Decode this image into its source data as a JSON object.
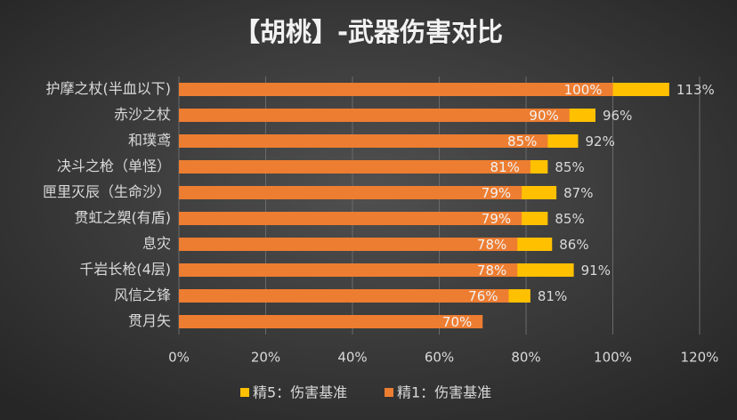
{
  "chart_data": {
    "type": "overlap-bar-horizontal",
    "title": "【胡桃】-武器伤害对比",
    "categories": [
      "护摩之杖(半血以下)",
      "赤沙之杖",
      "和璞鸢",
      "决斗之枪（单怪）",
      "匣里灭辰（生命沙）",
      "贯虹之槊(有盾)",
      "息灾",
      "千岩长枪(4层)",
      "风信之锋",
      "贯月矢"
    ],
    "series": [
      {
        "name": "精5：伤害基准",
        "color": "#FFC000",
        "values": [
          113,
          96,
          92,
          85,
          87,
          85,
          86,
          91,
          81,
          null
        ],
        "value_labels": [
          "113%",
          "96%",
          "92%",
          "85%",
          "87%",
          "85%",
          "86%",
          "91%",
          "81%",
          null
        ]
      },
      {
        "name": "精1：伤害基准",
        "color": "#ED7D31",
        "values": [
          100,
          90,
          85,
          81,
          79,
          79,
          78,
          78,
          76,
          70
        ],
        "value_labels": [
          "100%",
          "90%",
          "85%",
          "81%",
          "79%",
          "79%",
          "78%",
          "78%",
          "76%",
          "70%"
        ]
      }
    ],
    "xlim": [
      0,
      120
    ],
    "xticks": [
      {
        "value": 0,
        "label": "0%"
      },
      {
        "value": 20,
        "label": "20%"
      },
      {
        "value": 40,
        "label": "40%"
      },
      {
        "value": 60,
        "label": "60%"
      },
      {
        "value": 80,
        "label": "80%"
      },
      {
        "value": 100,
        "label": "100%"
      },
      {
        "value": 120,
        "label": "120%"
      }
    ],
    "grid": true,
    "legend": "bottom"
  }
}
